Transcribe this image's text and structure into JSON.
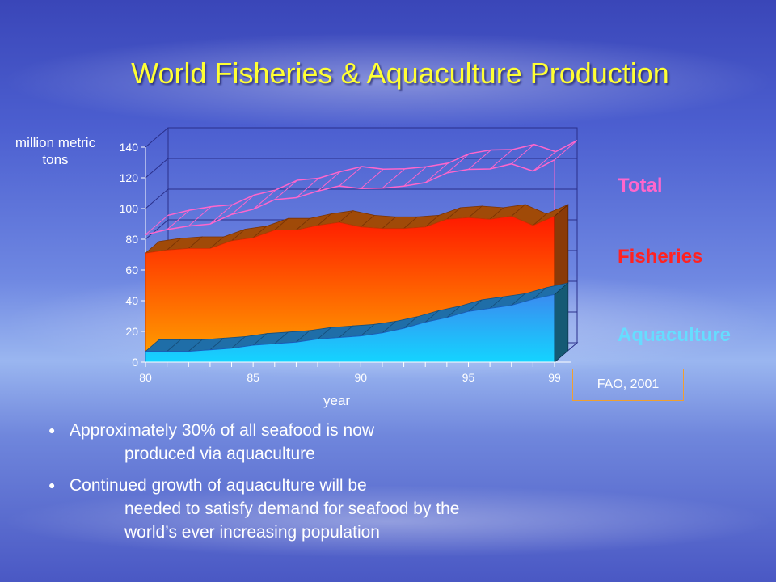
{
  "slide": {
    "title": "World Fisheries & Aquaculture Production",
    "source": "FAO, 2001",
    "bullets": [
      {
        "line1": "Approximately 30% of all seafood is now",
        "line2": "produced via aquaculture"
      },
      {
        "line1": "Continued growth of aquaculture will be",
        "line2": "needed to satisfy demand for seafood by the world’s ever increasing population"
      }
    ]
  },
  "colors": {
    "total": "#ff66cc",
    "fisheries": "#ff2222",
    "aquaculture": "#66ddff",
    "title": "#ffff33"
  },
  "chart_data": {
    "type": "area",
    "title": "World Fisheries & Aquaculture Production",
    "ylabel": "million metric tons",
    "xlabel": "year",
    "ylim": [
      0,
      140
    ],
    "yticks": [
      0,
      20,
      40,
      60,
      80,
      100,
      120,
      140
    ],
    "xtick_labels": [
      "80",
      "85",
      "90",
      "95",
      "99"
    ],
    "x": [
      1980,
      1981,
      1982,
      1983,
      1984,
      1985,
      1986,
      1987,
      1988,
      1989,
      1990,
      1991,
      1992,
      1993,
      1994,
      1995,
      1996,
      1997,
      1998,
      1999
    ],
    "series": [
      {
        "name": "Aquaculture",
        "values": [
          7,
          7,
          7,
          8,
          9,
          11,
          12,
          13,
          15,
          16,
          17,
          19,
          22,
          26,
          29,
          33,
          35,
          37,
          41,
          44
        ]
      },
      {
        "name": "Fisheries",
        "values": [
          64,
          66,
          67,
          66,
          70,
          70,
          74,
          73,
          74,
          75,
          71,
          68,
          65,
          62,
          64,
          61,
          58,
          58,
          48,
          51
        ]
      },
      {
        "name": "Total",
        "values": [
          71,
          73,
          74,
          74,
          79,
          81,
          86,
          86,
          89,
          91,
          88,
          87,
          87,
          88,
          93,
          94,
          93,
          95,
          89,
          95
        ]
      }
    ],
    "legend": "right",
    "grid": true
  }
}
